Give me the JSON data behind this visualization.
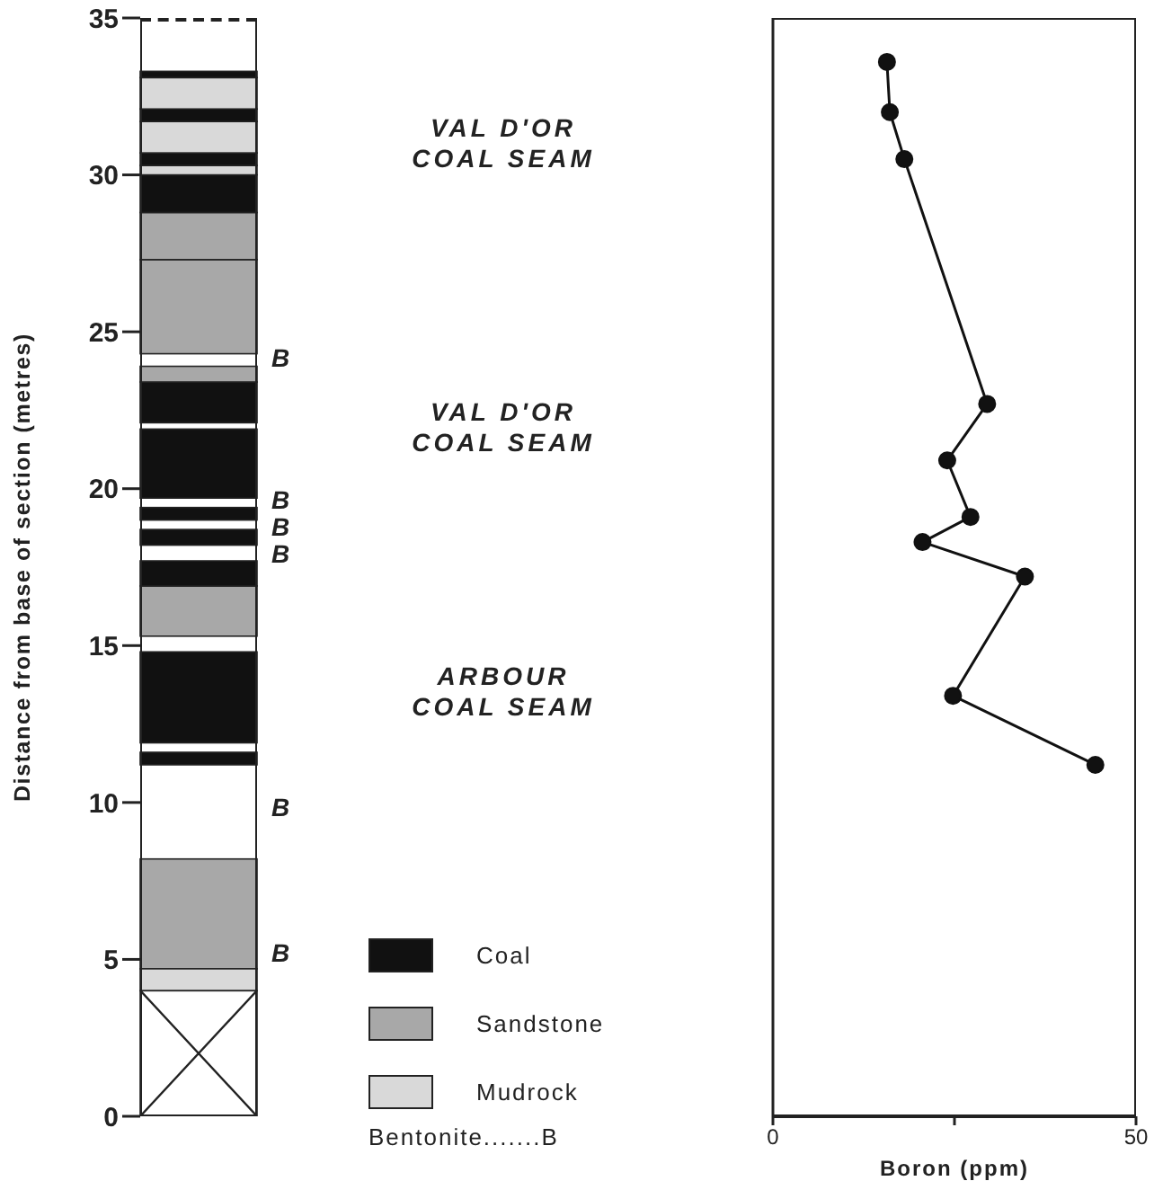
{
  "chart_data": [
    {
      "type": "bar",
      "ylabel": "Distance from base of section (metres)",
      "categories": [
        null
      ],
      "ylim": [
        0,
        35
      ],
      "yticks": [
        0,
        5,
        10,
        15,
        20,
        25,
        30,
        35
      ],
      "tick_labels": "y",
      "legend": "bottom left",
      "series": [
        {
          "name": "Coal",
          "color": "#111111",
          "base": [
            11.2
          ],
          "values": [
            0.4
          ]
        },
        {
          "name": "Sandstone",
          "color": "#a8a8a8",
          "base": [
            4.7
          ],
          "values": [
            3.5
          ]
        },
        {
          "name": "Mudrock",
          "color": "#d9d9d9",
          "base": [
            4.0
          ],
          "values": [
            0.7
          ]
        },
        {
          "color": "#ffffff",
          "base": [
            0
          ],
          "values": [
            4.0
          ]
        },
        {
          "color": "#111111",
          "base": [
            11.9
          ],
          "values": [
            2.9
          ]
        },
        {
          "color": "#a8a8a8",
          "base": [
            15.3
          ],
          "values": [
            1.6
          ]
        },
        {
          "color": "#111111",
          "base": [
            16.9
          ],
          "values": [
            0.8
          ]
        },
        {
          "color": "#111111",
          "base": [
            18.2
          ],
          "values": [
            0.5
          ]
        },
        {
          "color": "#111111",
          "base": [
            19.0
          ],
          "values": [
            0.4
          ]
        },
        {
          "color": "#111111",
          "base": [
            19.7
          ],
          "values": [
            2.2
          ]
        },
        {
          "color": "#111111",
          "base": [
            22.1
          ],
          "values": [
            1.3
          ]
        },
        {
          "color": "#a8a8a8",
          "base": [
            23.4
          ],
          "values": [
            0.5
          ]
        },
        {
          "color": "#a8a8a8",
          "base": [
            24.3
          ],
          "values": [
            3.0
          ]
        },
        {
          "color": "#a8a8a8",
          "base": [
            27.3
          ],
          "values": [
            1.5
          ]
        },
        {
          "color": "#111111",
          "base": [
            28.8
          ],
          "values": [
            1.2
          ]
        },
        {
          "color": "#d9d9d9",
          "base": [
            30.0
          ],
          "values": [
            0.3
          ]
        },
        {
          "color": "#111111",
          "base": [
            30.3
          ],
          "values": [
            0.4
          ]
        },
        {
          "color": "#d9d9d9",
          "base": [
            30.7
          ],
          "values": [
            1.0
          ]
        },
        {
          "color": "#111111",
          "base": [
            31.7
          ],
          "values": [
            0.4
          ]
        },
        {
          "color": "#d9d9d9",
          "base": [
            32.1
          ],
          "values": [
            1.0
          ]
        },
        {
          "color": "#111111",
          "base": [
            33.1
          ],
          "values": [
            0.2
          ]
        }
      ],
      "annotations": [
        "VAL D'OR\nCOAL SEAM",
        "VAL D'OR\nCOAL SEAM",
        "ARBOUR\nCOAL SEAM",
        "B",
        "B",
        "B",
        "B",
        "B",
        "B",
        "Bentonite.......B"
      ]
    },
    {
      "type": "line",
      "xlabel": "Boron (ppm)",
      "xlim": [
        0,
        50
      ],
      "xticks": [
        0,
        {
          "value": 25,
          "label": null
        },
        50
      ],
      "ylim": [
        0,
        35
      ],
      "tick_labels": "x",
      "marker": "circle",
      "line_style": "solid",
      "color": "#111111",
      "x": [
        15.7,
        16.1,
        18.1,
        29.5,
        24.0,
        27.2,
        20.6,
        34.7,
        24.8,
        44.4
      ],
      "values": [
        33.6,
        32.0,
        30.5,
        22.7,
        20.9,
        19.1,
        18.3,
        17.2,
        13.4,
        11.2
      ]
    }
  ]
}
